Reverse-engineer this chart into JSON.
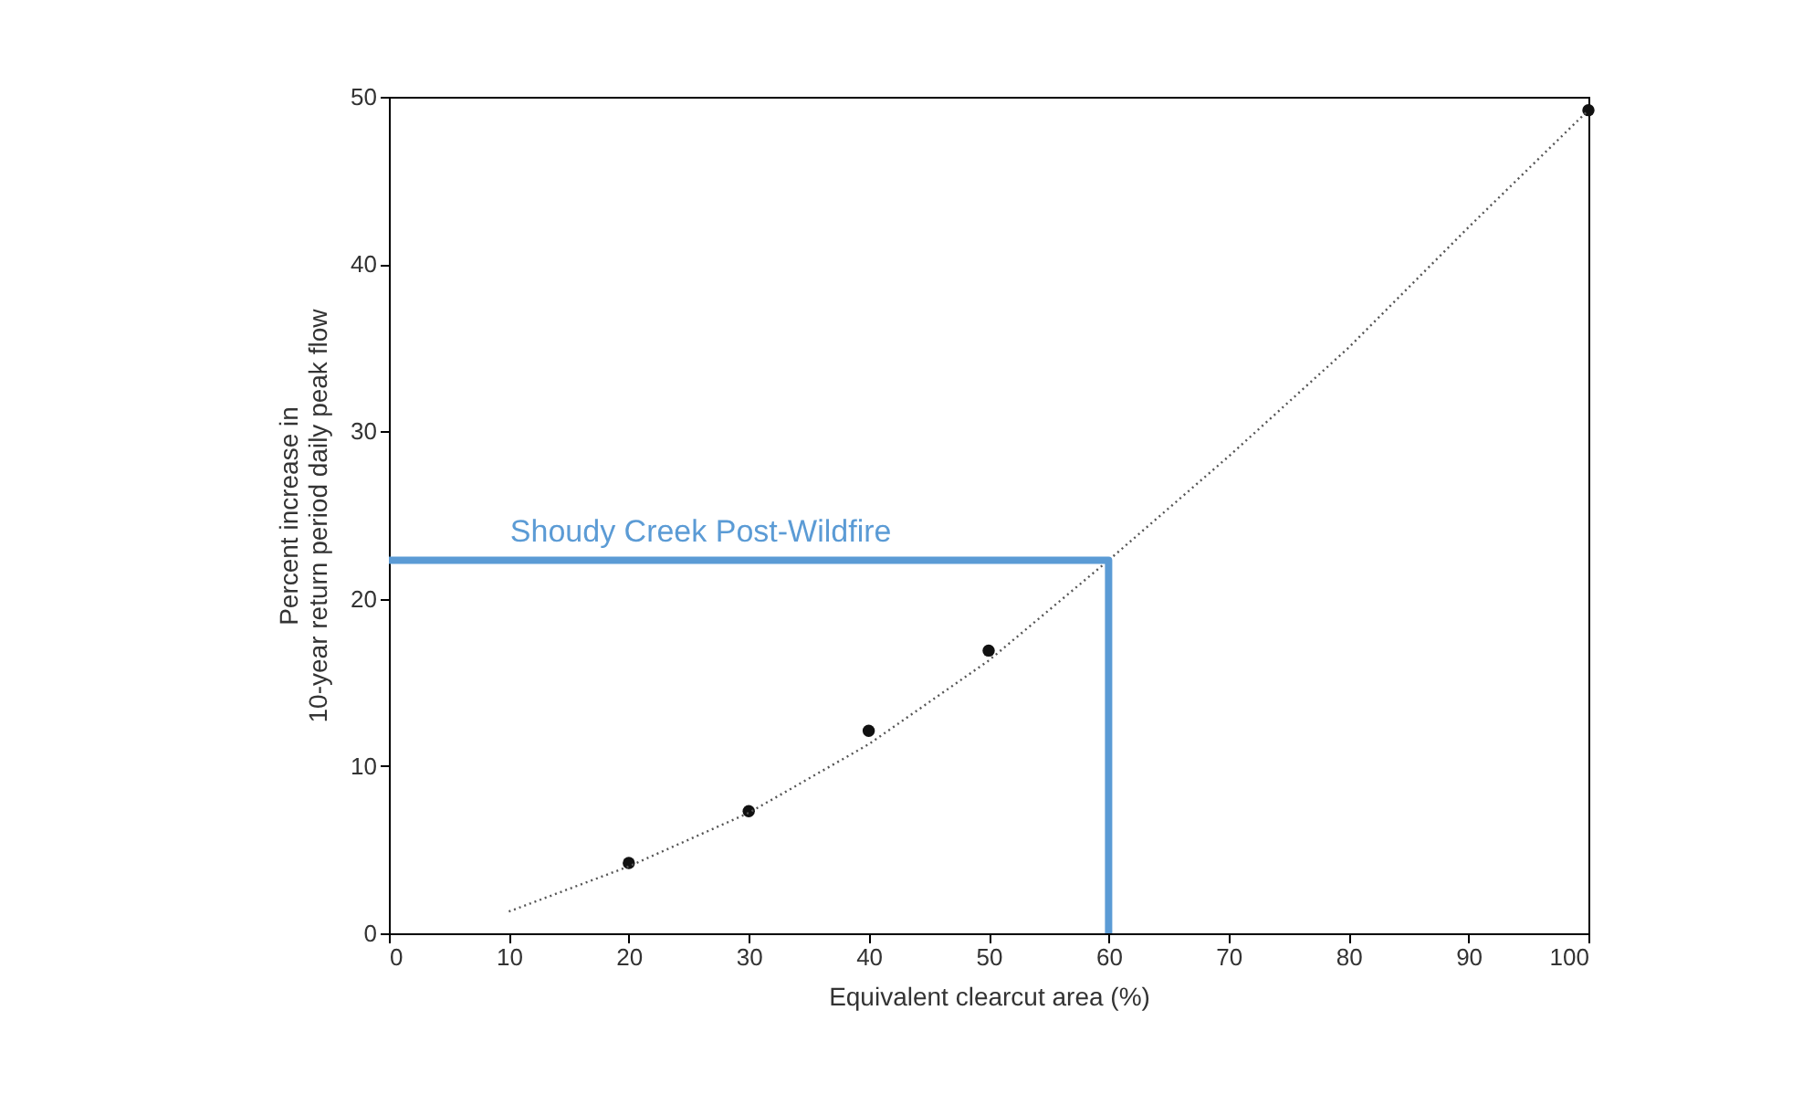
{
  "chart_data": {
    "type": "scatter",
    "xlabel": "Equivalent clearcut area (%)",
    "ylabel": "Percent increase in\n10-year return period daily peak flow",
    "xlim": [
      0,
      100
    ],
    "xticks": [
      0,
      10,
      20,
      30,
      40,
      50,
      60,
      70,
      80,
      90,
      100
    ],
    "ylim": [
      0,
      50
    ],
    "yticks": [
      0,
      10,
      20,
      30,
      40,
      50
    ],
    "grid": false,
    "series": [
      {
        "marker": "circle",
        "color": "#111111",
        "x": [
          20,
          30,
          40,
          50,
          100
        ],
        "values": [
          4.2,
          7.3,
          12.1,
          16.9,
          49.2
        ]
      },
      {
        "type": "line",
        "line_style": "dotted",
        "color": "#555555",
        "x": [
          10,
          20,
          30,
          40,
          50,
          60,
          70,
          80,
          90,
          100
        ],
        "values": [
          1.3,
          4.0,
          7.2,
          11.3,
          16.3,
          22.3,
          28.5,
          35.0,
          42.2,
          49.2
        ]
      },
      {
        "type": "line",
        "line_style": "solid",
        "color": "#5b9bd5",
        "x": [
          0,
          60,
          60
        ],
        "values": [
          22.3,
          22.3,
          0
        ]
      }
    ],
    "annotations": [
      {
        "text": "Shoudy Creek Post-Wildfire",
        "x": 26,
        "y": 22.3
      }
    ]
  }
}
